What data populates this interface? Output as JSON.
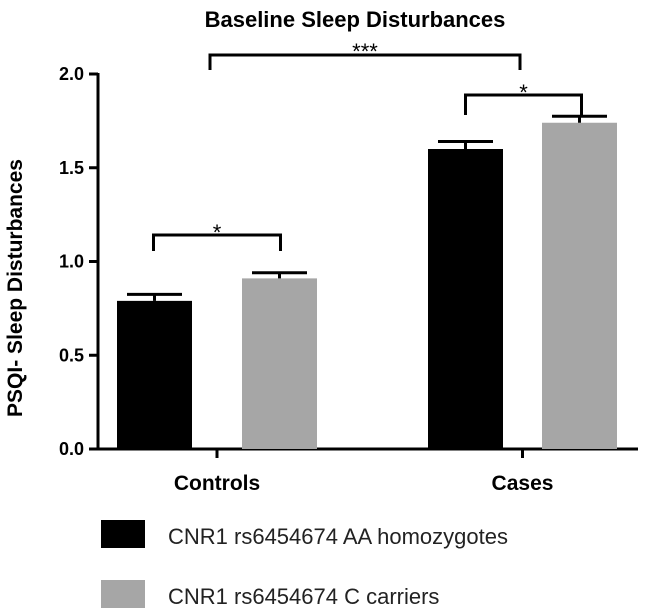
{
  "chart_data": {
    "type": "bar",
    "title": "Baseline Sleep Disturbances",
    "xlabel": "",
    "ylabel": "PSQI- Sleep Disturbances",
    "ylim": [
      0,
      2.0
    ],
    "yticks": [
      "0.0",
      "0.5",
      "1.0",
      "1.5",
      "2.0"
    ],
    "categories": [
      "Controls",
      "Cases"
    ],
    "series": [
      {
        "name": "CNR1 rs6454674 AA homozygotes",
        "color": "#000000",
        "values": [
          0.79,
          1.6
        ],
        "errors": [
          0.035,
          0.04
        ]
      },
      {
        "name": "CNR1 rs6454674 C carriers",
        "color": "#a6a6a6",
        "values": [
          0.91,
          1.74
        ],
        "errors": [
          0.03,
          0.035
        ]
      }
    ],
    "significance": [
      {
        "label": "*",
        "between": "Controls: AA homozygotes vs C carriers"
      },
      {
        "label": "*",
        "between": "Cases: AA homozygotes vs C carriers"
      },
      {
        "label": "***",
        "between": "Controls vs Cases"
      }
    ],
    "grid": false,
    "legend_position": "bottom"
  }
}
